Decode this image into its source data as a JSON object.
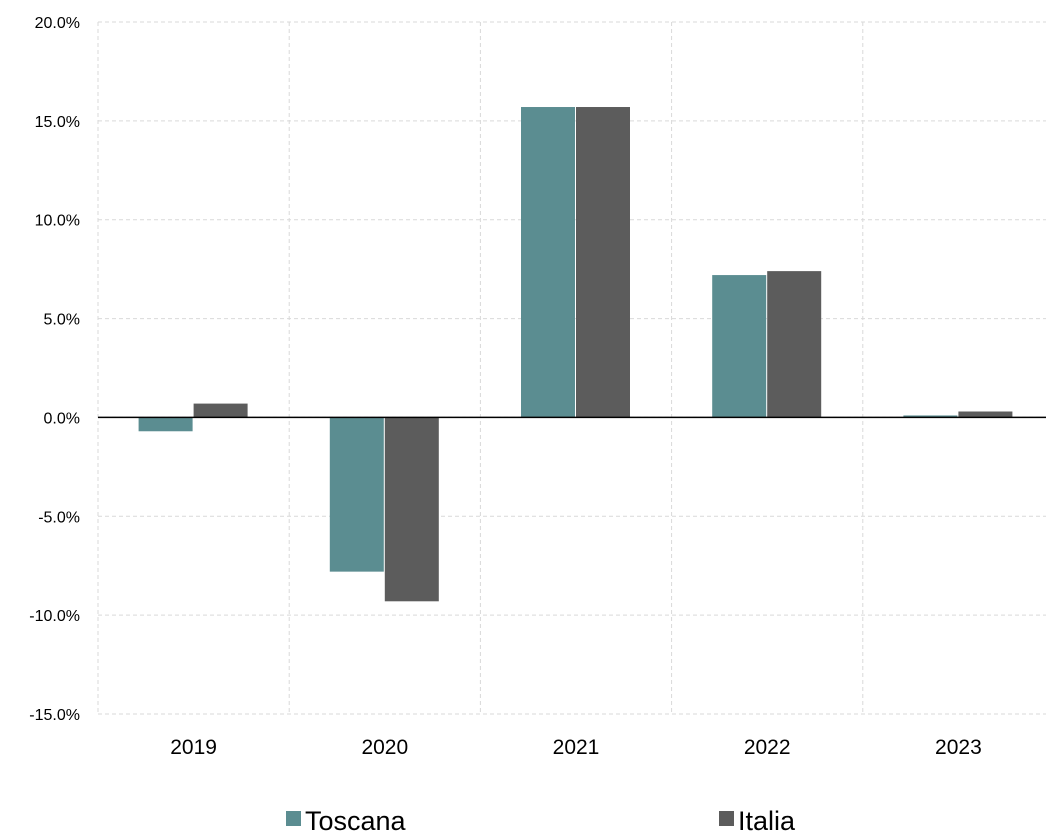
{
  "chart_data": {
    "type": "bar",
    "categories": [
      "2019",
      "2020",
      "2021",
      "2022",
      "2023"
    ],
    "series": [
      {
        "name": "Toscana",
        "values": [
          -0.7,
          -7.8,
          15.7,
          7.2,
          0.1
        ],
        "color": "#5b8d91"
      },
      {
        "name": "Italia",
        "values": [
          0.7,
          -9.3,
          15.7,
          7.4,
          0.3
        ],
        "color": "#5c5c5c"
      }
    ],
    "ylim": [
      -15,
      20
    ],
    "yticks": [
      20,
      15,
      10,
      5,
      0,
      -5,
      -10,
      -15
    ],
    "ytick_labels": [
      "20.0%",
      "15.0%",
      "10.0%",
      "5.0%",
      "0.0%",
      "-5.0%",
      "-10.0%",
      "-15.0%"
    ],
    "grid": true,
    "legend_position": "bottom",
    "title": "",
    "xlabel": "",
    "ylabel": ""
  }
}
